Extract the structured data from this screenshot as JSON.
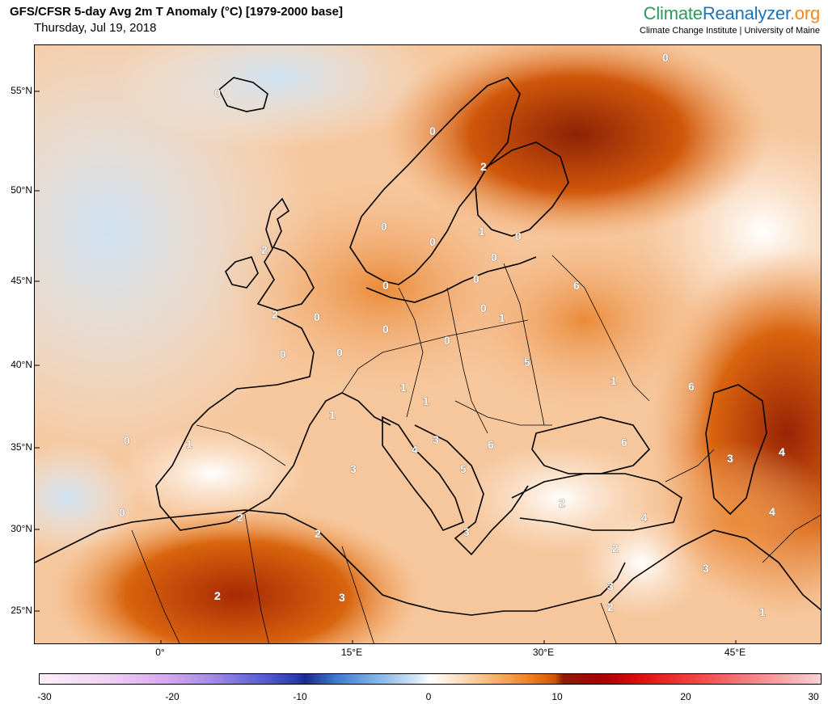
{
  "header": {
    "title": "GFS/CFSR 5-day Avg 2m T Anomaly (°C) [1979-2000 base]",
    "date": "Thursday, Jul 19, 2018"
  },
  "brand": {
    "part1": "Climate",
    "part2": "Reanalyzer",
    "part3": ".org",
    "subtitle": "Climate Change Institute | University of Maine",
    "colors": {
      "climate": "#2a9a5a",
      "reanalyzer": "#1e73b8",
      "org": "#f08a1a"
    }
  },
  "map": {
    "lat_labels": [
      "55°N",
      "50°N",
      "45°N",
      "40°N",
      "35°N",
      "30°N",
      "25°N"
    ],
    "lon_labels": [
      "0°",
      "15°E",
      "30°E",
      "45°E"
    ],
    "contour_labels": [
      "0",
      "0",
      "2",
      "0",
      "2",
      "0",
      "0",
      "1",
      "0",
      "0",
      "6",
      "0",
      "2",
      "0",
      "0",
      "0",
      "1",
      "5",
      "0",
      "0",
      "0",
      "0",
      "1",
      "1",
      "1",
      "1",
      "6",
      "0",
      "1",
      "4",
      "3",
      "6",
      "6",
      "3",
      "5",
      "4",
      "3",
      "4",
      "2",
      "4",
      "0",
      "2",
      "2",
      "3",
      "2",
      "3",
      "2",
      "3",
      "3",
      "2",
      "1"
    ]
  },
  "colorbar": {
    "ticks": [
      "-30",
      "-20",
      "-10",
      "0",
      "10",
      "20",
      "30"
    ],
    "min": -30,
    "max": 30,
    "colors": {
      "cold_extreme": "#fdf0fa",
      "cold": "#2a3aa8",
      "neutral": "#ffffff",
      "warm": "#ee7d1c",
      "hot": "#8e1c00",
      "hot_extreme": "#fbd2d2"
    }
  }
}
